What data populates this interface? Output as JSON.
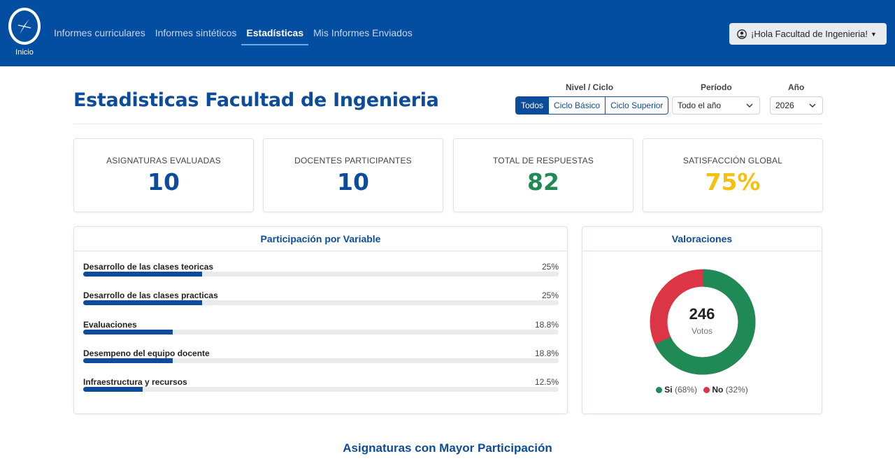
{
  "nav": {
    "logo_label": "Inicio",
    "links": [
      {
        "label": "Informes curriculares",
        "active": false
      },
      {
        "label": "Informes sintéticos",
        "active": false
      },
      {
        "label": "Estadísticas",
        "active": true
      },
      {
        "label": "Mis Informes Enviados",
        "active": false
      }
    ],
    "user_button": "¡Hola Facultad de Ingenieria!",
    "brand_color": "#034ea0"
  },
  "header": {
    "title": "Estadisticas Facultad de Ingenieria",
    "nivel_label": "Nivel / Ciclo",
    "nivel_options": [
      "Todos",
      "Ciclo Básico",
      "Ciclo Superior"
    ],
    "nivel_selected": "Todos",
    "periodo_label": "Período",
    "periodo_value": "Todo el año",
    "anio_label": "Año",
    "anio_value": "2026"
  },
  "stats": [
    {
      "title": "ASIGNATURAS EVALUADAS",
      "value": "10",
      "color": "#0d4c9a"
    },
    {
      "title": "DOCENTES PARTICIPANTES",
      "value": "10",
      "color": "#0d4c9a"
    },
    {
      "title": "TOTAL DE RESPUESTAS",
      "value": "82",
      "color": "#1f8a56"
    },
    {
      "title": "SATISFACCIÓN GLOBAL",
      "value": "75%",
      "color": "#f4c20d"
    }
  ],
  "participacion": {
    "title": "Participación por Variable",
    "rows": [
      {
        "name": "Desarrollo de las clases teoricas",
        "pct_label": "25%",
        "pct": 25
      },
      {
        "name": "Desarrollo de las clases practicas",
        "pct_label": "25%",
        "pct": 25
      },
      {
        "name": "Evaluaciones",
        "pct_label": "18.8%",
        "pct": 18.8
      },
      {
        "name": "Desempeno del equipo docente",
        "pct_label": "18.8%",
        "pct": 18.8
      },
      {
        "name": "Infraestructura y recursos",
        "pct_label": "12.5%",
        "pct": 12.5
      }
    ]
  },
  "valoraciones": {
    "title": "Valoraciones",
    "total": "246",
    "total_label": "Votos",
    "si_label": "Si",
    "si_pct_label": "(68%)",
    "si_fraction": 0.68,
    "si_color": "#1f8a56",
    "no_label": "No",
    "no_pct_label": "(32%)",
    "no_color": "#dc3545"
  },
  "section_title": "Asignaturas con Mayor Participación"
}
